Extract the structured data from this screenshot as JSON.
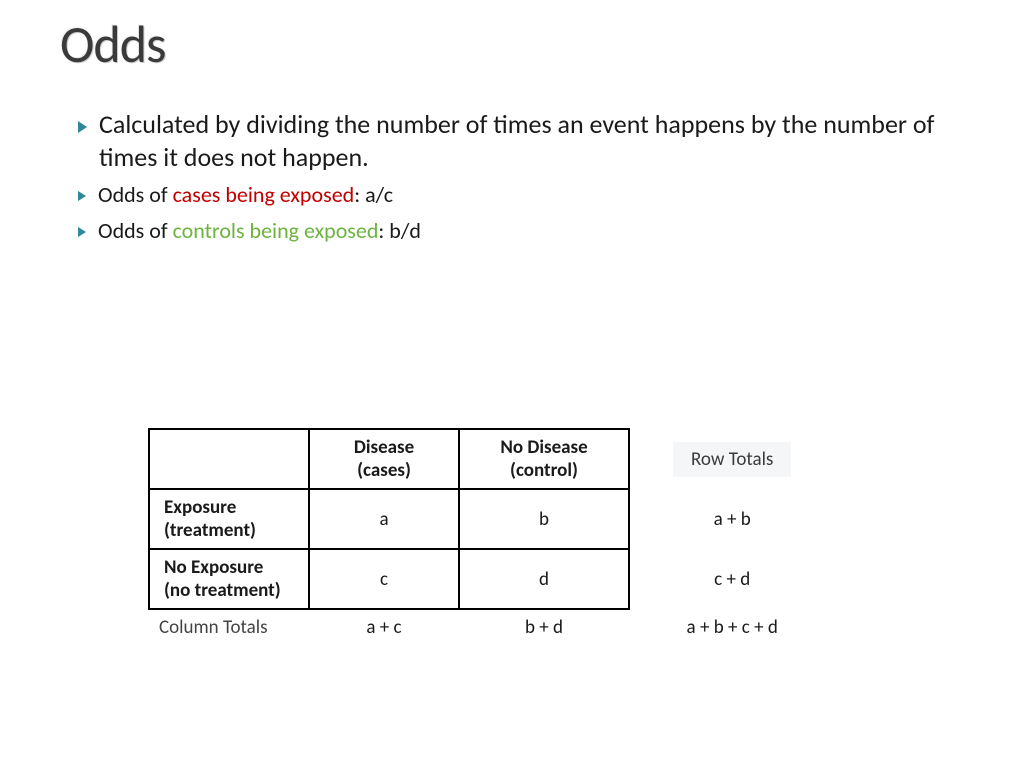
{
  "title": "Odds",
  "bullets": [
    {
      "size": "lg",
      "parts": [
        {
          "text": "Calculated by dividing the number of times an event happens by the number of times it does not happen."
        }
      ]
    },
    {
      "size": "md",
      "parts": [
        {
          "text": "Odds of "
        },
        {
          "text": "cases being exposed",
          "cls": "red"
        },
        {
          "text": ": a/c"
        }
      ]
    },
    {
      "size": "md",
      "parts": [
        {
          "text": "Odds of "
        },
        {
          "text": "controls being exposed",
          "cls": "green"
        },
        {
          "text": ": b/d"
        }
      ]
    }
  ],
  "table": {
    "col_headers": {
      "disease": "Disease\n(cases)",
      "nodisease": "No Disease\n(control)",
      "rowtotals": "Row Totals"
    },
    "row_headers": {
      "exposure": "Exposure\n(treatment)",
      "noexposure": "No Exposure\n(no treatment)",
      "coltotals": "Column Totals"
    },
    "cells": {
      "a": "a",
      "b": "b",
      "ab": "a + b",
      "c": "c",
      "d": "d",
      "cd": "c + d",
      "ac": "a + c",
      "bd": "b + d",
      "abcd": "a + b + c + d"
    },
    "col_widths": {
      "rowhdr": 160,
      "disease": 150,
      "nodisease": 170,
      "totals": 160
    }
  },
  "deco": {
    "colors": {
      "dark_teal": "#2e7d8a",
      "light_teal": "#c9e0e7",
      "black": "#000000"
    }
  }
}
